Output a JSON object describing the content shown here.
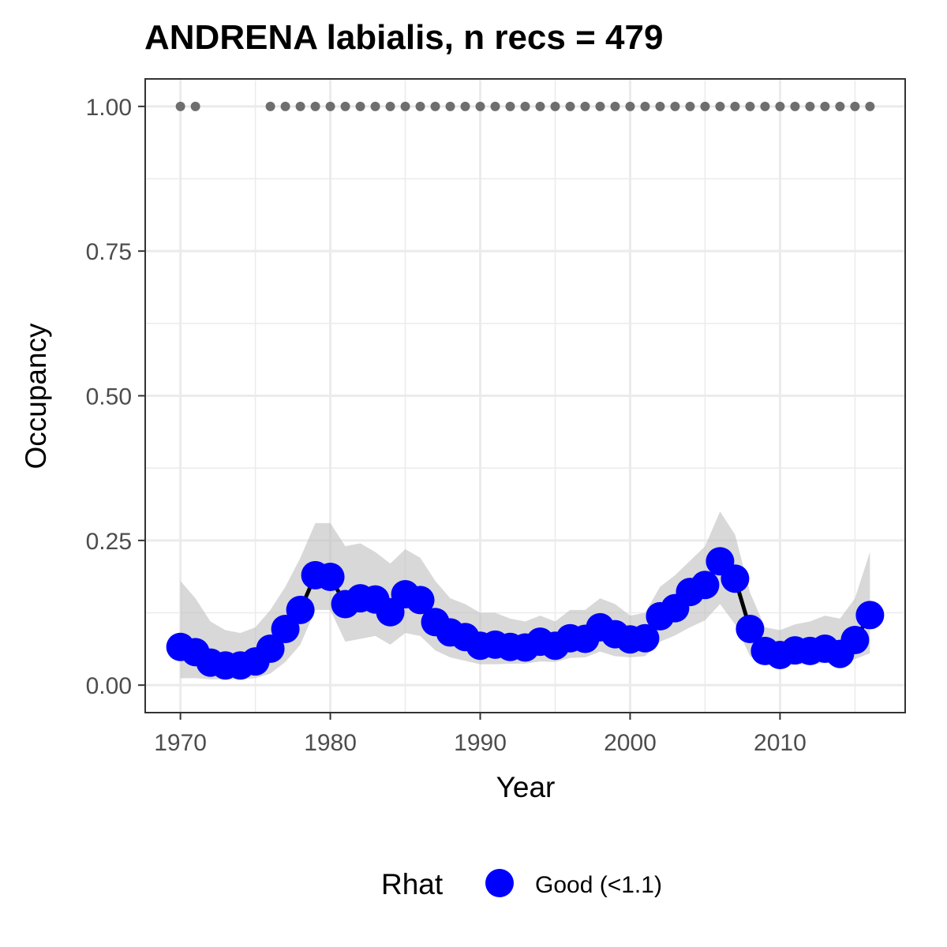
{
  "chart_data": {
    "type": "line",
    "title": "ANDRENA labialis, n recs = 479",
    "xlabel": "Year",
    "ylabel": "Occupancy",
    "xlim": [
      1967.8,
      1918.2
    ],
    "ylim": [
      -0.0475,
      1.0475
    ],
    "x_ticks": [
      1970,
      1980,
      1990,
      2000,
      2010
    ],
    "y_ticks": [
      0.0,
      0.25,
      0.5,
      0.75,
      1.0
    ],
    "x_tick_labels": [
      "1970",
      "1980",
      "1990",
      "2000",
      "2010"
    ],
    "y_tick_labels": [
      "0.00",
      "0.25",
      "0.50",
      "0.75",
      "1.00"
    ],
    "grid": true,
    "colors": {
      "points": "#0000ff",
      "line": "#000000",
      "ribbon": "#bebebe",
      "record_dots": "#6e6e6e",
      "grid": "#ebebeb",
      "panel_border": "#333333"
    },
    "series": [
      {
        "name": "Good (<1.1)",
        "x": [
          1970,
          1971,
          1972,
          1973,
          1974,
          1975,
          1976,
          1977,
          1978,
          1979,
          1980,
          1981,
          1982,
          1983,
          1984,
          1985,
          1986,
          1987,
          1988,
          1989,
          1990,
          1991,
          1992,
          1993,
          1994,
          1995,
          1996,
          1997,
          1998,
          1999,
          2000,
          2001,
          2002,
          2003,
          2004,
          2005,
          2006,
          2007,
          2008,
          2009,
          2010,
          2011,
          2012,
          2013,
          2014,
          2015,
          2016
        ],
        "y": [
          0.066,
          0.057,
          0.039,
          0.034,
          0.034,
          0.041,
          0.063,
          0.097,
          0.13,
          0.19,
          0.187,
          0.14,
          0.15,
          0.148,
          0.126,
          0.157,
          0.147,
          0.109,
          0.091,
          0.083,
          0.068,
          0.07,
          0.066,
          0.065,
          0.075,
          0.068,
          0.081,
          0.08,
          0.1,
          0.088,
          0.079,
          0.081,
          0.119,
          0.133,
          0.161,
          0.173,
          0.214,
          0.184,
          0.097,
          0.059,
          0.052,
          0.06,
          0.059,
          0.063,
          0.054,
          0.078,
          0.121
        ],
        "lower": [
          0.012,
          0.012,
          0.01,
          0.01,
          0.01,
          0.012,
          0.02,
          0.04,
          0.07,
          0.13,
          0.13,
          0.075,
          0.08,
          0.085,
          0.07,
          0.09,
          0.085,
          0.06,
          0.048,
          0.042,
          0.036,
          0.036,
          0.037,
          0.037,
          0.041,
          0.04,
          0.047,
          0.048,
          0.058,
          0.05,
          0.048,
          0.05,
          0.075,
          0.086,
          0.1,
          0.112,
          0.14,
          0.105,
          0.05,
          0.036,
          0.032,
          0.036,
          0.036,
          0.038,
          0.036,
          0.045,
          0.055
        ],
        "upper": [
          0.18,
          0.15,
          0.11,
          0.095,
          0.09,
          0.1,
          0.13,
          0.17,
          0.22,
          0.28,
          0.28,
          0.24,
          0.245,
          0.23,
          0.21,
          0.235,
          0.22,
          0.18,
          0.15,
          0.14,
          0.125,
          0.125,
          0.115,
          0.11,
          0.12,
          0.11,
          0.13,
          0.13,
          0.15,
          0.14,
          0.12,
          0.125,
          0.17,
          0.19,
          0.215,
          0.24,
          0.3,
          0.26,
          0.16,
          0.1,
          0.095,
          0.105,
          0.11,
          0.12,
          0.115,
          0.15,
          0.23
        ]
      }
    ],
    "record_years": [
      1970,
      1971,
      1976,
      1977,
      1978,
      1979,
      1980,
      1981,
      1982,
      1983,
      1984,
      1985,
      1986,
      1987,
      1988,
      1989,
      1990,
      1991,
      1992,
      1993,
      1994,
      1995,
      1996,
      1997,
      1998,
      1999,
      2000,
      2001,
      2002,
      2003,
      2004,
      2005,
      2006,
      2007,
      2008,
      2009,
      2010,
      2011,
      2012,
      2013,
      2014,
      2015,
      2016
    ],
    "record_value": 1.0,
    "legend": {
      "position": "bottom",
      "title": "Rhat",
      "entries": [
        "Good (<1.1)"
      ]
    }
  }
}
